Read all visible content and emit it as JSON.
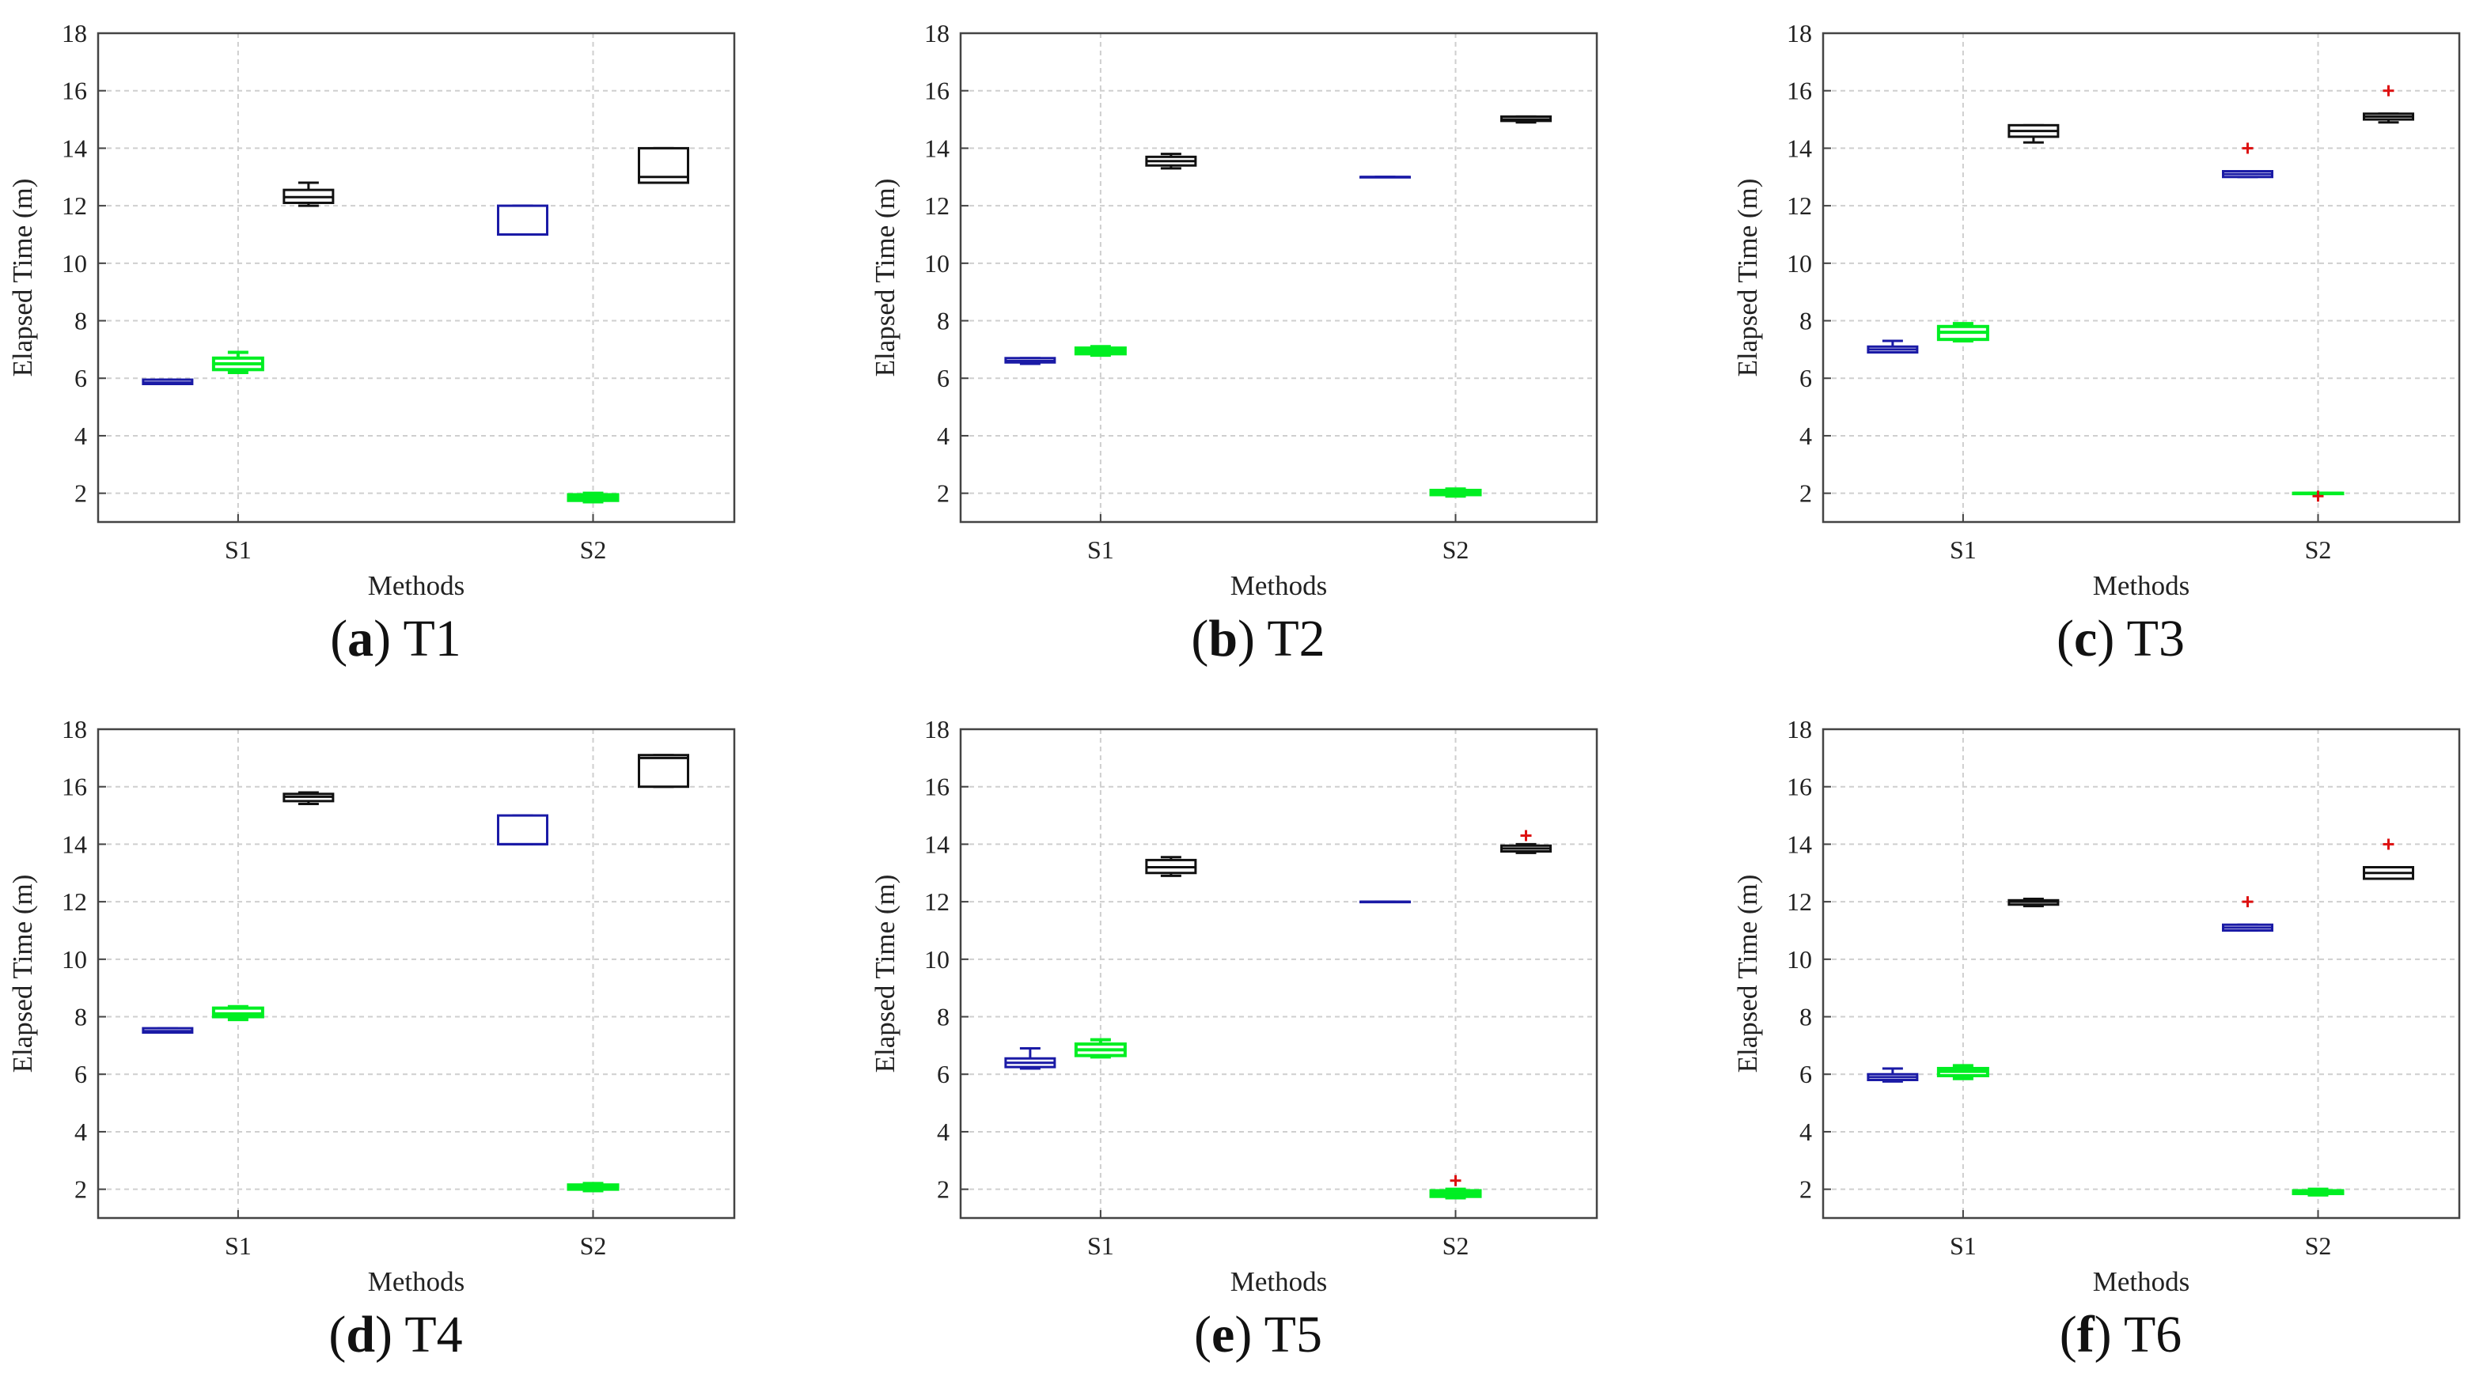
{
  "figure": {
    "colors": {
      "blue": "#1a1aa6",
      "green": "#00ee22",
      "black": "#111111",
      "outlier": "#dd1111",
      "grid": "#cfcfcf"
    },
    "chart_data": [
      {
        "type": "box",
        "panel_letter": "a",
        "panel_title": "T1",
        "xlabel": "Methods",
        "ylabel": "Elapsed Time (m)",
        "ylim": [
          1,
          18
        ],
        "yticks": [
          2,
          4,
          6,
          8,
          10,
          12,
          14,
          16,
          18
        ],
        "categories": [
          "S1",
          "S2"
        ],
        "series": [
          {
            "name": "blue",
            "color": "#1a1aa6",
            "boxes": [
              {
                "category": "S1",
                "min": 5.8,
                "q1": 5.8,
                "median": 5.85,
                "q3": 5.95,
                "max": 5.95,
                "outliers": []
              },
              {
                "category": "S2",
                "min": 11.0,
                "q1": 11.0,
                "median": 11.0,
                "q3": 12.0,
                "max": 12.0,
                "outliers": []
              }
            ]
          },
          {
            "name": "green",
            "color": "#00ee22",
            "boxes": [
              {
                "category": "S1",
                "min": 6.2,
                "q1": 6.3,
                "median": 6.5,
                "q3": 6.7,
                "max": 6.9,
                "outliers": []
              },
              {
                "category": "S2",
                "min": 1.7,
                "q1": 1.75,
                "median": 1.85,
                "q3": 1.95,
                "max": 2.0,
                "outliers": []
              }
            ]
          },
          {
            "name": "black",
            "color": "#111111",
            "boxes": [
              {
                "category": "S1",
                "min": 12.0,
                "q1": 12.1,
                "median": 12.3,
                "q3": 12.55,
                "max": 12.8,
                "outliers": []
              },
              {
                "category": "S2",
                "min": 12.8,
                "q1": 12.8,
                "median": 13.0,
                "q3": 14.0,
                "max": 14.0,
                "outliers": []
              }
            ]
          }
        ]
      },
      {
        "type": "box",
        "panel_letter": "b",
        "panel_title": "T2",
        "xlabel": "Methods",
        "ylabel": "Elapsed Time (m)",
        "ylim": [
          1,
          18
        ],
        "yticks": [
          2,
          4,
          6,
          8,
          10,
          12,
          14,
          16,
          18
        ],
        "categories": [
          "S1",
          "S2"
        ],
        "series": [
          {
            "name": "blue",
            "color": "#1a1aa6",
            "boxes": [
              {
                "category": "S1",
                "min": 6.5,
                "q1": 6.55,
                "median": 6.6,
                "q3": 6.7,
                "max": 6.7,
                "outliers": []
              },
              {
                "category": "S2",
                "min": 13.0,
                "q1": 13.0,
                "median": 13.0,
                "q3": 13.0,
                "max": 13.0,
                "outliers": []
              }
            ]
          },
          {
            "name": "green",
            "color": "#00ee22",
            "boxes": [
              {
                "category": "S1",
                "min": 6.8,
                "q1": 6.85,
                "median": 6.95,
                "q3": 7.05,
                "max": 7.1,
                "outliers": []
              },
              {
                "category": "S2",
                "min": 1.9,
                "q1": 1.95,
                "median": 2.0,
                "q3": 2.1,
                "max": 2.15,
                "outliers": []
              }
            ]
          },
          {
            "name": "black",
            "color": "#111111",
            "boxes": [
              {
                "category": "S1",
                "min": 13.3,
                "q1": 13.4,
                "median": 13.55,
                "q3": 13.7,
                "max": 13.8,
                "outliers": []
              },
              {
                "category": "S2",
                "min": 14.9,
                "q1": 14.95,
                "median": 15.0,
                "q3": 15.1,
                "max": 15.1,
                "outliers": []
              }
            ]
          }
        ]
      },
      {
        "type": "box",
        "panel_letter": "c",
        "panel_title": "T3",
        "xlabel": "Methods",
        "ylabel": "Elapsed Time (m)",
        "ylim": [
          1,
          18
        ],
        "yticks": [
          2,
          4,
          6,
          8,
          10,
          12,
          14,
          16,
          18
        ],
        "categories": [
          "S1",
          "S2"
        ],
        "series": [
          {
            "name": "blue",
            "color": "#1a1aa6",
            "boxes": [
              {
                "category": "S1",
                "min": 6.9,
                "q1": 6.9,
                "median": 7.0,
                "q3": 7.1,
                "max": 7.3,
                "outliers": []
              },
              {
                "category": "S2",
                "min": 13.0,
                "q1": 13.0,
                "median": 13.1,
                "q3": 13.2,
                "max": 13.2,
                "outliers": [
                  14.0
                ]
              }
            ]
          },
          {
            "name": "green",
            "color": "#00ee22",
            "boxes": [
              {
                "category": "S1",
                "min": 7.3,
                "q1": 7.35,
                "median": 7.6,
                "q3": 7.8,
                "max": 7.9,
                "outliers": []
              },
              {
                "category": "S2",
                "min": 2.0,
                "q1": 2.0,
                "median": 2.0,
                "q3": 2.0,
                "max": 2.0,
                "outliers": [
                  1.9
                ]
              }
            ]
          },
          {
            "name": "black",
            "color": "#111111",
            "boxes": [
              {
                "category": "S1",
                "min": 14.2,
                "q1": 14.4,
                "median": 14.6,
                "q3": 14.8,
                "max": 14.8,
                "outliers": []
              },
              {
                "category": "S2",
                "min": 14.9,
                "q1": 15.0,
                "median": 15.1,
                "q3": 15.2,
                "max": 15.2,
                "outliers": [
                  16.0
                ]
              }
            ]
          }
        ]
      },
      {
        "type": "box",
        "panel_letter": "d",
        "panel_title": "T4",
        "xlabel": "Methods",
        "ylabel": "Elapsed Time (m)",
        "ylim": [
          1,
          18
        ],
        "yticks": [
          2,
          4,
          6,
          8,
          10,
          12,
          14,
          16,
          18
        ],
        "categories": [
          "S1",
          "S2"
        ],
        "series": [
          {
            "name": "blue",
            "color": "#1a1aa6",
            "boxes": [
              {
                "category": "S1",
                "min": 7.45,
                "q1": 7.45,
                "median": 7.5,
                "q3": 7.6,
                "max": 7.6,
                "outliers": []
              },
              {
                "category": "S2",
                "min": 14.0,
                "q1": 14.0,
                "median": 14.0,
                "q3": 15.0,
                "max": 15.0,
                "outliers": []
              }
            ]
          },
          {
            "name": "green",
            "color": "#00ee22",
            "boxes": [
              {
                "category": "S1",
                "min": 7.9,
                "q1": 8.0,
                "median": 8.1,
                "q3": 8.3,
                "max": 8.35,
                "outliers": []
              },
              {
                "category": "S2",
                "min": 1.95,
                "q1": 2.0,
                "median": 2.05,
                "q3": 2.15,
                "max": 2.2,
                "outliers": []
              }
            ]
          },
          {
            "name": "black",
            "color": "#111111",
            "boxes": [
              {
                "category": "S1",
                "min": 15.4,
                "q1": 15.5,
                "median": 15.65,
                "q3": 15.75,
                "max": 15.8,
                "outliers": []
              },
              {
                "category": "S2",
                "min": 16.0,
                "q1": 16.0,
                "median": 17.0,
                "q3": 17.1,
                "max": 17.1,
                "outliers": []
              }
            ]
          }
        ]
      },
      {
        "type": "box",
        "panel_letter": "e",
        "panel_title": "T5",
        "xlabel": "Methods",
        "ylabel": "Elapsed Time (m)",
        "ylim": [
          1,
          18
        ],
        "yticks": [
          2,
          4,
          6,
          8,
          10,
          12,
          14,
          16,
          18
        ],
        "categories": [
          "S1",
          "S2"
        ],
        "series": [
          {
            "name": "blue",
            "color": "#1a1aa6",
            "boxes": [
              {
                "category": "S1",
                "min": 6.2,
                "q1": 6.25,
                "median": 6.4,
                "q3": 6.55,
                "max": 6.9,
                "outliers": []
              },
              {
                "category": "S2",
                "min": 12.0,
                "q1": 12.0,
                "median": 12.0,
                "q3": 12.0,
                "max": 12.0,
                "outliers": []
              }
            ]
          },
          {
            "name": "green",
            "color": "#00ee22",
            "boxes": [
              {
                "category": "S1",
                "min": 6.6,
                "q1": 6.65,
                "median": 6.85,
                "q3": 7.05,
                "max": 7.2,
                "outliers": []
              },
              {
                "category": "S2",
                "min": 1.7,
                "q1": 1.75,
                "median": 1.85,
                "q3": 1.95,
                "max": 2.0,
                "outliers": [
                  2.3
                ]
              }
            ]
          },
          {
            "name": "black",
            "color": "#111111",
            "boxes": [
              {
                "category": "S1",
                "min": 12.9,
                "q1": 13.0,
                "median": 13.2,
                "q3": 13.45,
                "max": 13.55,
                "outliers": []
              },
              {
                "category": "S2",
                "min": 13.7,
                "q1": 13.75,
                "median": 13.85,
                "q3": 13.95,
                "max": 14.0,
                "outliers": [
                  14.3
                ]
              }
            ]
          }
        ]
      },
      {
        "type": "box",
        "panel_letter": "f",
        "panel_title": "T6",
        "xlabel": "Methods",
        "ylabel": "Elapsed Time (m)",
        "ylim": [
          1,
          18
        ],
        "yticks": [
          2,
          4,
          6,
          8,
          10,
          12,
          14,
          16,
          18
        ],
        "categories": [
          "S1",
          "S2"
        ],
        "series": [
          {
            "name": "blue",
            "color": "#1a1aa6",
            "boxes": [
              {
                "category": "S1",
                "min": 5.75,
                "q1": 5.8,
                "median": 5.9,
                "q3": 6.0,
                "max": 6.2,
                "outliers": []
              },
              {
                "category": "S2",
                "min": 11.0,
                "q1": 11.0,
                "median": 11.1,
                "q3": 11.2,
                "max": 11.2,
                "outliers": [
                  12.0
                ]
              }
            ]
          },
          {
            "name": "green",
            "color": "#00ee22",
            "boxes": [
              {
                "category": "S1",
                "min": 5.85,
                "q1": 5.95,
                "median": 6.1,
                "q3": 6.2,
                "max": 6.3,
                "outliers": []
              },
              {
                "category": "S2",
                "min": 1.8,
                "q1": 1.85,
                "median": 1.9,
                "q3": 1.95,
                "max": 2.0,
                "outliers": []
              }
            ]
          },
          {
            "name": "black",
            "color": "#111111",
            "boxes": [
              {
                "category": "S1",
                "min": 11.85,
                "q1": 11.9,
                "median": 12.0,
                "q3": 12.05,
                "max": 12.1,
                "outliers": []
              },
              {
                "category": "S2",
                "min": 12.8,
                "q1": 12.8,
                "median": 13.0,
                "q3": 13.2,
                "max": 13.2,
                "outliers": [
                  14.0
                ]
              }
            ]
          }
        ]
      }
    ]
  }
}
